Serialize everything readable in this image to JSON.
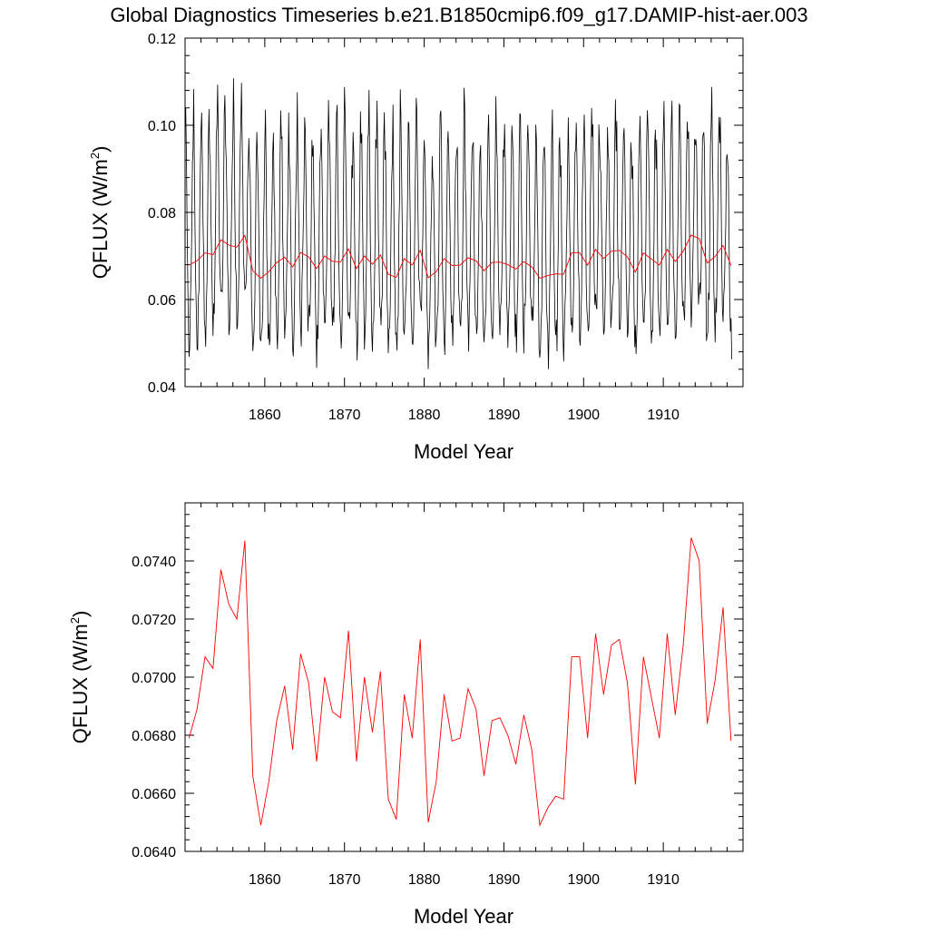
{
  "title": "Global Diagnostics Timeseries b.e21.B1850cmip6.f09_g17.DAMIP-hist-aer.003",
  "colors": {
    "monthly": "#000000",
    "annual": "#ff0000",
    "axes": "#000000",
    "background": "#ffffff"
  },
  "chart_data": [
    {
      "type": "line",
      "xlabel": "Model Year",
      "ylabel": "QFLUX (W/m",
      "ylabel_sup": "2",
      "ylabel_close": ")",
      "xlim": [
        1850,
        1920
      ],
      "ylim": [
        0.04,
        0.12
      ],
      "xticks": [
        "1860",
        "1870",
        "1880",
        "1890",
        "1900",
        "1910"
      ],
      "yticks": [
        "0.04",
        "0.06",
        "0.08",
        "0.10",
        "0.12"
      ],
      "grid": false,
      "series": [
        {
          "color": "#000000",
          "kind": "monthly",
          "summary": "monthly values oscillating seasonally between about 0.045 and 0.115, peaks near 1854 (0.115), 1867 (0.110), 1913 (0.113); lows near 1859 (0.044), 1876 (0.044)"
        },
        {
          "color": "#ff0000",
          "kind": "annual",
          "ref": "annual"
        }
      ]
    },
    {
      "type": "line",
      "xlabel": "Model Year",
      "ylabel": "QFLUX (W/m",
      "ylabel_sup": "2",
      "ylabel_close": ")",
      "xlim": [
        1850,
        1920
      ],
      "ylim": [
        0.064,
        0.076
      ],
      "xticks": [
        "1860",
        "1870",
        "1880",
        "1890",
        "1900",
        "1910"
      ],
      "yticks": [
        "0.0640",
        "0.0660",
        "0.0680",
        "0.0700",
        "0.0720",
        "0.0740"
      ],
      "grid": false,
      "series": [
        {
          "color": "#ff0000",
          "kind": "annual",
          "x": [
            1850,
            1851,
            1852,
            1853,
            1854,
            1855,
            1856,
            1857,
            1858,
            1859,
            1860,
            1861,
            1862,
            1863,
            1864,
            1865,
            1866,
            1867,
            1868,
            1869,
            1870,
            1871,
            1872,
            1873,
            1874,
            1875,
            1876,
            1877,
            1878,
            1879,
            1880,
            1881,
            1882,
            1883,
            1884,
            1885,
            1886,
            1887,
            1888,
            1889,
            1890,
            1891,
            1892,
            1893,
            1894,
            1895,
            1896,
            1897,
            1898,
            1899,
            1900,
            1901,
            1902,
            1903,
            1904,
            1905,
            1906,
            1907,
            1908,
            1909,
            1910,
            1911,
            1912,
            1913,
            1914,
            1915,
            1916,
            1917,
            1918
          ],
          "y": [
            0.0679,
            0.0689,
            0.0707,
            0.0703,
            0.0737,
            0.0725,
            0.072,
            0.0747,
            0.0666,
            0.0649,
            0.0664,
            0.0685,
            0.0697,
            0.0675,
            0.0708,
            0.0698,
            0.0671,
            0.07,
            0.0688,
            0.0686,
            0.0716,
            0.0671,
            0.07,
            0.0681,
            0.0702,
            0.0658,
            0.0651,
            0.0694,
            0.0679,
            0.0713,
            0.065,
            0.0664,
            0.0694,
            0.0678,
            0.0679,
            0.0696,
            0.0689,
            0.0666,
            0.0685,
            0.0686,
            0.068,
            0.067,
            0.0687,
            0.0675,
            0.0649,
            0.0655,
            0.0659,
            0.0658,
            0.0707,
            0.0707,
            0.0679,
            0.0715,
            0.0694,
            0.0711,
            0.0713,
            0.0698,
            0.0663,
            0.0707,
            0.0693,
            0.0679,
            0.0715,
            0.0687,
            0.0711,
            0.0748,
            0.074,
            0.0684,
            0.0699,
            0.0724,
            0.0678
          ]
        }
      ]
    }
  ]
}
